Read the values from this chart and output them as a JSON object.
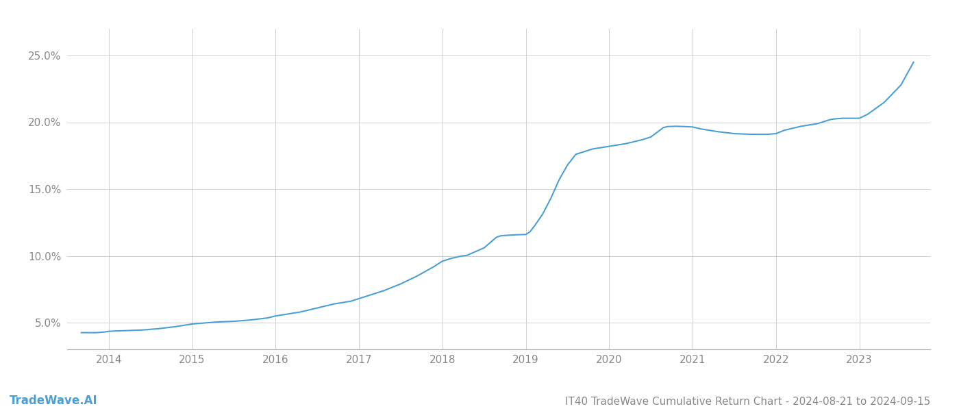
{
  "title": "IT40 TradeWave Cumulative Return Chart - 2024-08-21 to 2024-09-15",
  "watermark": "TradeWave.AI",
  "line_color": "#4a9fd4",
  "background_color": "#ffffff",
  "grid_color": "#d0d0d0",
  "x_values": [
    2013.67,
    2013.75,
    2013.85,
    2013.95,
    2014.0,
    2014.1,
    2014.2,
    2014.4,
    2014.6,
    2014.8,
    2015.0,
    2015.1,
    2015.3,
    2015.5,
    2015.7,
    2015.9,
    2016.0,
    2016.1,
    2016.3,
    2016.5,
    2016.7,
    2016.9,
    2017.0,
    2017.1,
    2017.3,
    2017.5,
    2017.7,
    2017.9,
    2018.0,
    2018.05,
    2018.1,
    2018.2,
    2018.3,
    2018.5,
    2018.65,
    2018.7,
    2018.8,
    2018.9,
    2019.0,
    2019.05,
    2019.1,
    2019.2,
    2019.3,
    2019.4,
    2019.5,
    2019.6,
    2019.8,
    2020.0,
    2020.1,
    2020.2,
    2020.3,
    2020.4,
    2020.5,
    2020.65,
    2020.7,
    2020.8,
    2020.9,
    2021.0,
    2021.1,
    2021.3,
    2021.5,
    2021.7,
    2021.9,
    2022.0,
    2022.1,
    2022.3,
    2022.5,
    2022.65,
    2022.7,
    2022.8,
    2022.9,
    2023.0,
    2023.1,
    2023.3,
    2023.5,
    2023.65
  ],
  "y_values": [
    0.0425,
    0.0425,
    0.0425,
    0.043,
    0.0435,
    0.0438,
    0.044,
    0.0445,
    0.0455,
    0.047,
    0.049,
    0.0495,
    0.0505,
    0.051,
    0.052,
    0.0535,
    0.055,
    0.056,
    0.058,
    0.061,
    0.064,
    0.066,
    0.068,
    0.07,
    0.074,
    0.079,
    0.085,
    0.092,
    0.096,
    0.097,
    0.098,
    0.0995,
    0.1005,
    0.106,
    0.114,
    0.115,
    0.1155,
    0.1158,
    0.116,
    0.118,
    0.122,
    0.131,
    0.143,
    0.157,
    0.168,
    0.176,
    0.18,
    0.182,
    0.183,
    0.184,
    0.1855,
    0.187,
    0.189,
    0.196,
    0.1968,
    0.197,
    0.1968,
    0.1965,
    0.195,
    0.193,
    0.1915,
    0.191,
    0.191,
    0.1915,
    0.194,
    0.197,
    0.199,
    0.202,
    0.2025,
    0.203,
    0.203,
    0.203,
    0.206,
    0.215,
    0.228,
    0.245
  ],
  "ylim": [
    0.03,
    0.27
  ],
  "yticks": [
    0.05,
    0.1,
    0.15,
    0.2,
    0.25
  ],
  "ytick_labels": [
    "5.0%",
    "10.0%",
    "15.0%",
    "20.0%",
    "25.0%"
  ],
  "xlim": [
    2013.5,
    2023.85
  ],
  "xtick_years": [
    2014,
    2015,
    2016,
    2017,
    2018,
    2019,
    2020,
    2021,
    2022,
    2023
  ],
  "title_fontsize": 11,
  "watermark_fontsize": 12,
  "tick_fontsize": 11,
  "line_width": 1.5
}
